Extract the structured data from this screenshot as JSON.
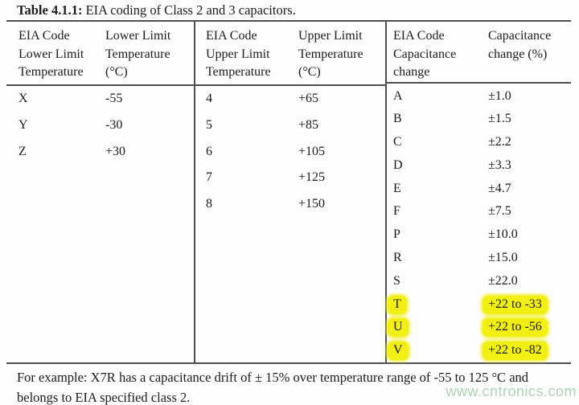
{
  "caption": {
    "number": "Table 4.1.1:",
    "text": " EIA coding of Class 2 and 3 capacitors."
  },
  "table": {
    "sections": [
      {
        "id": "lower-limit-temperature",
        "headers": [
          "EIA Code\nLower Limit\nTemperature",
          "Lower Limit\nTemperature\n(°C)"
        ],
        "rows": [
          {
            "code": "X",
            "value": "-55"
          },
          {
            "code": "Y",
            "value": "-30"
          },
          {
            "code": "Z",
            "value": "+30"
          }
        ]
      },
      {
        "id": "upper-limit-temperature",
        "headers": [
          "EIA Code\nUpper Limit\nTemperature",
          "Upper Limit\nTemperature\n(°C)"
        ],
        "rows": [
          {
            "code": "4",
            "value": "+65"
          },
          {
            "code": "5",
            "value": "+85"
          },
          {
            "code": "6",
            "value": "+105"
          },
          {
            "code": "7",
            "value": "+125"
          },
          {
            "code": "8",
            "value": "+150"
          }
        ]
      },
      {
        "id": "capacitance-change",
        "headers": [
          "EIA Code\nCapacitance\nchange",
          "Capacitance\nchange (%)"
        ],
        "rows": [
          {
            "code": "A",
            "value": "±1.0"
          },
          {
            "code": "B",
            "value": "±1.5"
          },
          {
            "code": "C",
            "value": "±2.2"
          },
          {
            "code": "D",
            "value": "±3.3"
          },
          {
            "code": "E",
            "value": "±4.7"
          },
          {
            "code": "F",
            "value": "±7.5"
          },
          {
            "code": "P",
            "value": "±10.0"
          },
          {
            "code": "R",
            "value": "±15.0"
          },
          {
            "code": "S",
            "value": "±22.0"
          },
          {
            "code": "T",
            "value": "+22 to -33",
            "highlight": true
          },
          {
            "code": "U",
            "value": "+22 to -56",
            "highlight": true
          },
          {
            "code": "V",
            "value": "+22 to -82",
            "highlight": true
          }
        ]
      }
    ]
  },
  "footnote": "For example: X7R has a capacitance drift of ± 15% over temperature range of -55 to 125 °C and\nbelongs to EIA specified class 2.",
  "watermark": "www.cntronics.com",
  "colors": {
    "highlight": "#f2ef15",
    "watermark": "#aed2b3",
    "rule": "#4e4e4e",
    "text": "#1c1c1c"
  }
}
